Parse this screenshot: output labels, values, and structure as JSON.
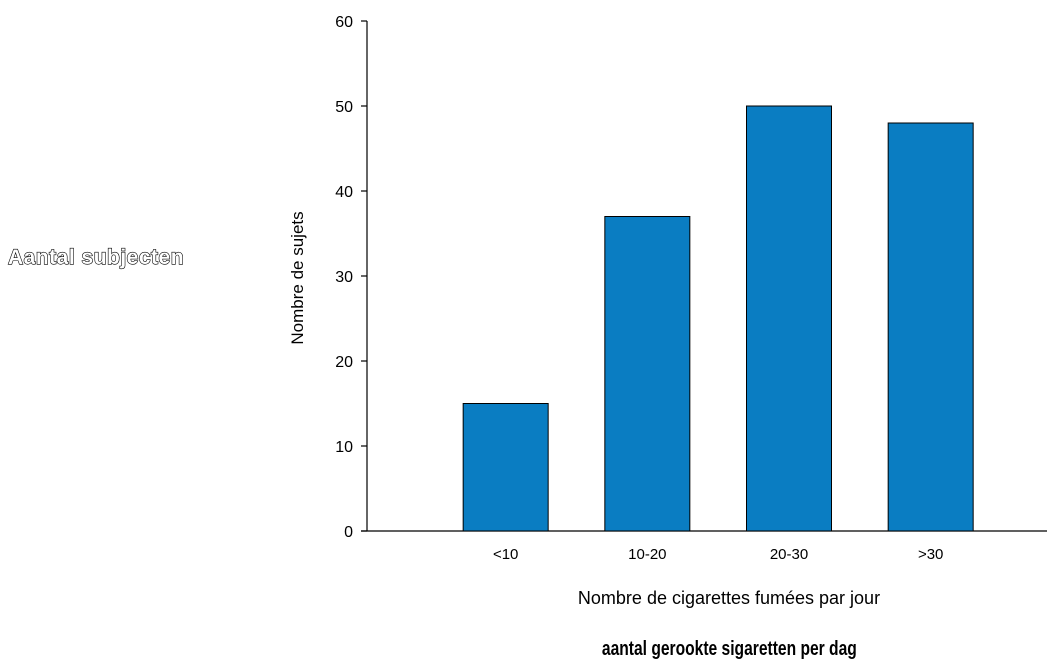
{
  "chart_data": {
    "type": "bar",
    "categories": [
      "<10",
      "10-20",
      "20-30",
      ">30"
    ],
    "values": [
      15,
      37,
      50,
      48
    ],
    "title": "",
    "xlabel": "Nombre de cigarettes fumées par jour",
    "ylabel": "Nombre de sujets",
    "ylim": [
      0,
      60
    ],
    "yticks": [
      0,
      10,
      20,
      30,
      40,
      50,
      60
    ],
    "bar_color": "#0a7dc2",
    "grid": false,
    "legend": "none"
  },
  "overlay": {
    "left_label": "Aantal subjecten",
    "bottom_label": "aantal gerookte sigaretten per dag"
  }
}
